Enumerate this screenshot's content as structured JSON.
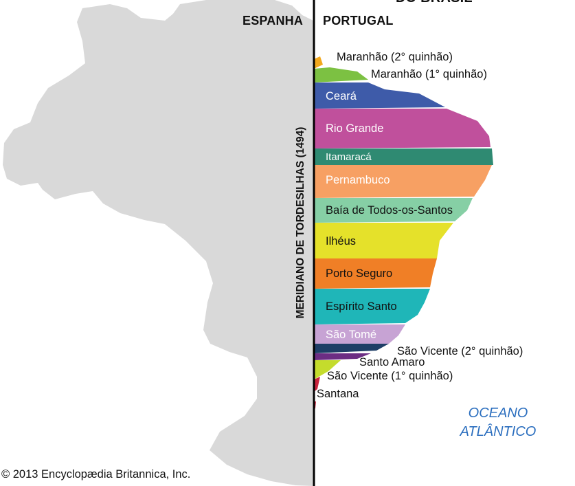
{
  "headers": {
    "top_partial": "DO BRASIL",
    "spain": "ESPANHA",
    "portugal": "PORTUGAL"
  },
  "meridian_label": "MERIDIANO DE TORDESILHAS (1494)",
  "ocean_label": [
    "OCEANO",
    "ATLÂNTICO"
  ],
  "copyright": "© 2013 Encyclopædia Britannica, Inc.",
  "colors": {
    "land": "#d9d9d9",
    "ocean_text": "#2c6fbf",
    "maranhao2": "#f2a81d",
    "maranhao1": "#7cc142",
    "ceara": "#3e5ba9",
    "rio_grande": "#c0509c",
    "itamaraca": "#2f8a72",
    "pernambuco": "#f7a063",
    "baia": "#86cfa5",
    "ilheus": "#e5e12a",
    "porto_seguro": "#f07f26",
    "espirito_santo": "#1fb6b8",
    "sao_tome": "#c7a3d4",
    "sao_vicente2": "#1e3e66",
    "santo_amaro": "#6c2d83",
    "sao_vicente1": "#c4dc2c",
    "santana": "#c8233c"
  },
  "captaincies": [
    {
      "name": "Maranhão (2° quinhão)",
      "color_key": "maranhao2"
    },
    {
      "name": "Maranhão (1° quinhão)",
      "color_key": "maranhao1"
    },
    {
      "name": "Ceará",
      "color_key": "ceara"
    },
    {
      "name": "Rio Grande",
      "color_key": "rio_grande"
    },
    {
      "name": "Itamaracá",
      "color_key": "itamaraca"
    },
    {
      "name": "Pernambuco",
      "color_key": "pernambuco"
    },
    {
      "name": "Baía de Todos-os-Santos",
      "color_key": "baia"
    },
    {
      "name": "Ilhéus",
      "color_key": "ilheus"
    },
    {
      "name": "Porto Seguro",
      "color_key": "porto_seguro"
    },
    {
      "name": "Espírito Santo",
      "color_key": "espirito_santo"
    },
    {
      "name": "São Tomé",
      "color_key": "sao_tome"
    },
    {
      "name": "São Vicente (2° quinhão)",
      "color_key": "sao_vicente2"
    },
    {
      "name": "Santo Amaro",
      "color_key": "santo_amaro"
    },
    {
      "name": "São Vicente (1° quinhão)",
      "color_key": "sao_vicente1"
    },
    {
      "name": "Santana",
      "color_key": "santana"
    }
  ]
}
